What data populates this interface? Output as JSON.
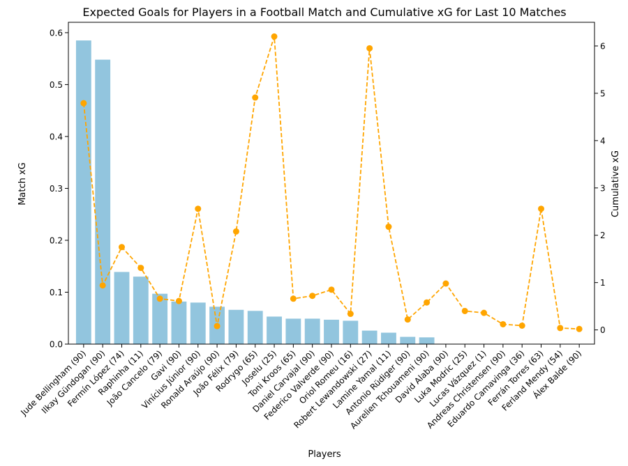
{
  "chart_data": {
    "type": "bar",
    "title": "Expected Goals for Players in a Football Match and Cumulative xG for Last 10 Matches",
    "xlabel": "Players",
    "ylabel": "Match xG",
    "y2label": "Cumulative xG",
    "ylim": [
      0,
      0.62
    ],
    "y2lim": [
      -0.3,
      6.5
    ],
    "yticks": [
      "0.0",
      "0.1",
      "0.2",
      "0.3",
      "0.4",
      "0.5",
      "0.6"
    ],
    "y2ticks": [
      "0",
      "1",
      "2",
      "3",
      "4",
      "5",
      "6"
    ],
    "grid": false,
    "colors": {
      "bar": "#92c5de",
      "line": "#ffa500",
      "ylabel": "#87ceeb",
      "y2label": "#ffa500"
    },
    "categories": [
      "Jude Bellingham (90)",
      "Ilkay Gündogan (90)",
      "Fermín López (74)",
      "Raphinha (11)",
      "João Cancelo (79)",
      "Gavi (90)",
      "Vinícius Júnior (90)",
      "Ronald Araújo (90)",
      "João Félix (79)",
      "Rodrygo (65)",
      "Joselu (25)",
      "Toni Kroos (65)",
      "Daniel Carvajal (90)",
      "Federico Valverde (90)",
      "Oriol Romeu (16)",
      "Robert Lewandowski (27)",
      "Lamine Yamal (11)",
      "Antonio Rüdiger (90)",
      "Aurelien Tchouameni (90)",
      "David Alaba (90)",
      "Luka Modric (25)",
      "Lucas Vázquez (1)",
      "Andreas Christensen (90)",
      "Eduardo Camavinga (36)",
      "Ferrán Torres (63)",
      "Ferland Mendy (54)",
      "Álex Balde (90)"
    ],
    "series": [
      {
        "name": "Match xG",
        "type": "bar",
        "values": [
          0.585,
          0.548,
          0.139,
          0.13,
          0.097,
          0.082,
          0.08,
          0.072,
          0.066,
          0.064,
          0.053,
          0.049,
          0.049,
          0.047,
          0.045,
          0.026,
          0.022,
          0.014,
          0.013,
          0,
          0,
          0,
          0,
          0,
          0,
          0,
          0
        ]
      },
      {
        "name": "Cumulative xG",
        "type": "line",
        "axis": "right",
        "values": [
          4.79,
          0.94,
          1.75,
          1.31,
          0.66,
          0.61,
          2.56,
          0.08,
          2.08,
          4.91,
          6.2,
          0.66,
          0.72,
          0.85,
          0.34,
          5.95,
          2.18,
          0.22,
          0.58,
          0.98,
          0.4,
          0.36,
          0.12,
          0.09,
          2.56,
          0.04,
          0.02
        ]
      }
    ]
  }
}
